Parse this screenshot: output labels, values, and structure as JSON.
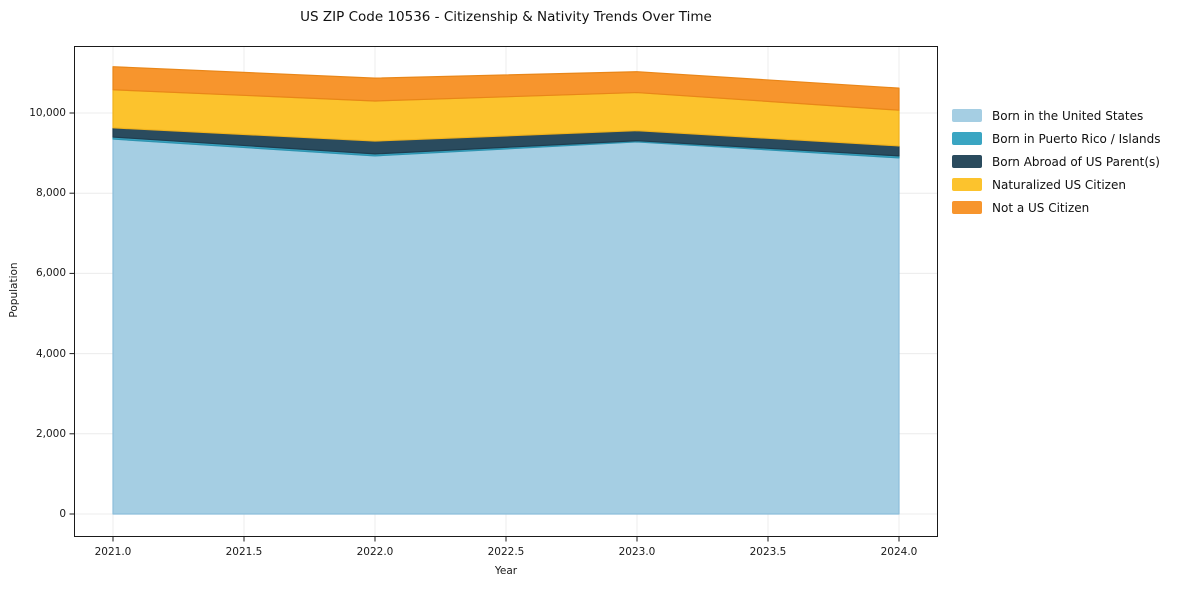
{
  "chart_data": {
    "type": "area",
    "stacked": true,
    "title": "US ZIP Code 10536 - Citizenship & Nativity Trends Over Time",
    "xlabel": "Year",
    "ylabel": "Population",
    "x": [
      2021,
      2022,
      2023,
      2024
    ],
    "series": [
      {
        "name": "Born in the United States",
        "color": "#A5CEE3",
        "edge_color": "#8CBEDA",
        "values": [
          9350,
          8930,
          9280,
          8880
        ]
      },
      {
        "name": "Born in Puerto Rico / Islands",
        "color": "#3AA5C2",
        "edge_color": "#2E94B0",
        "values": [
          50,
          50,
          30,
          50
        ]
      },
      {
        "name": "Born Abroad of US Parent(s)",
        "color": "#2A4B5E",
        "edge_color": "#1F3D4F",
        "values": [
          230,
          320,
          250,
          250
        ]
      },
      {
        "name": "Naturalized US Citizen",
        "color": "#FCC32D",
        "edge_color": "#F0B21D",
        "values": [
          950,
          1000,
          950,
          890
        ]
      },
      {
        "name": "Not a US Citizen",
        "color": "#F7952D",
        "edge_color": "#E98618",
        "values": [
          575,
          570,
          520,
          550
        ]
      }
    ],
    "stack_totals": [
      11155,
      10870,
      11030,
      10620
    ],
    "xticks": [
      2021.0,
      2021.5,
      2022.0,
      2022.5,
      2023.0,
      2023.5,
      2024.0
    ],
    "xtick_labels": [
      "2021.0",
      "2021.5",
      "2022.0",
      "2022.5",
      "2023.0",
      "2023.5",
      "2024.0"
    ],
    "yticks": [
      0,
      2000,
      4000,
      6000,
      8000,
      10000
    ],
    "ytick_labels": [
      "0",
      "2,000",
      "4,000",
      "6,000",
      "8,000",
      "10,000"
    ],
    "xlim": [
      2020.85,
      2024.15
    ],
    "ylim": [
      0,
      11670
    ],
    "grid": true,
    "grid_color": "#ececec",
    "frame_color": "#1a1a1a",
    "legend_position": "outside-right"
  }
}
